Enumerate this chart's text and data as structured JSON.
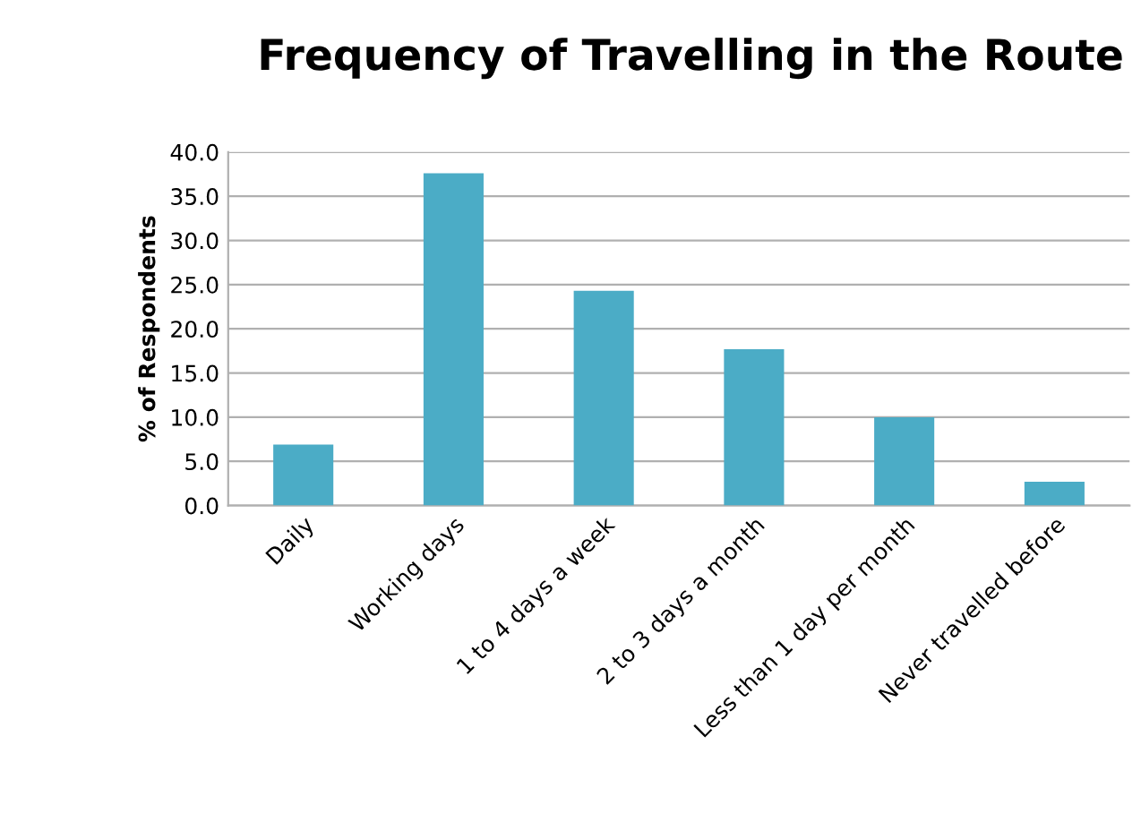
{
  "chart_data": {
    "type": "bar",
    "title": "Frequency of Travelling in the Route",
    "ylabel": "% of Respondents",
    "categories": [
      "Daily",
      "Working days",
      "1 to 4 days a week",
      "2 to 3 days a month",
      "Less than 1 day per month",
      "Never travelled before"
    ],
    "values": [
      6.9,
      37.6,
      24.3,
      17.7,
      10.0,
      2.7
    ],
    "color": "#4bacc6",
    "ylim": [
      0,
      40
    ],
    "yticks": [
      {
        "value": 0,
        "label": "0.0"
      },
      {
        "value": 5,
        "label": "5.0"
      },
      {
        "value": 10,
        "label": "10.0"
      },
      {
        "value": 15,
        "label": "15.0"
      },
      {
        "value": 20,
        "label": "20.0"
      },
      {
        "value": 25,
        "label": "25.0"
      },
      {
        "value": 30,
        "label": "30.0"
      },
      {
        "value": 35,
        "label": "35.0"
      },
      {
        "value": 40,
        "label": "40.0"
      }
    ],
    "grid": "y"
  }
}
